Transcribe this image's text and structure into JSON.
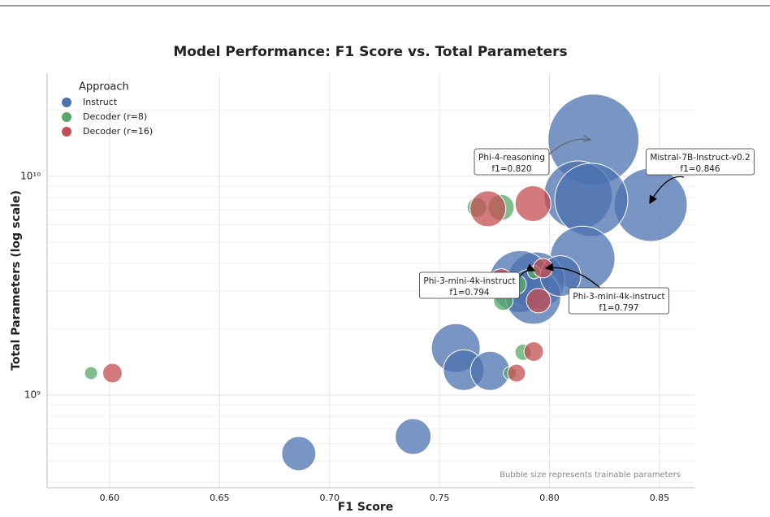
{
  "chart_data": {
    "type": "bubble",
    "title": "Model Performance: F1 Score vs. Total Parameters",
    "x_label": "F1 Score",
    "y_label": "Total Parameters (log scale)",
    "log_y": true,
    "grid": true,
    "legend_title": "Approach",
    "legend_position": "upper left",
    "note": "Bubble size represents trainable parameters",
    "xlim": [
      0.5716,
      0.8659
    ],
    "xticks": [
      {
        "value": 0.6,
        "label": "0.60"
      },
      0.65,
      {
        "value": 0.7,
        "label": "0.70"
      },
      0.75,
      {
        "value": 0.8,
        "label": "0.80"
      },
      0.85
    ],
    "ylim": [
      377000000,
      29600000000
    ],
    "yticks": [
      {
        "value": 1000000000,
        "label": "10⁹"
      },
      {
        "value": 10000000000,
        "label": "10¹⁰"
      }
    ],
    "yminorticks": [
      400000000,
      500000000,
      600000000,
      700000000,
      800000000,
      900000000,
      2000000000,
      3000000000,
      4000000000,
      5000000000,
      6000000000,
      7000000000,
      8000000000,
      9000000000,
      20000000000
    ],
    "series": [
      {
        "name": "Instruct",
        "color": "#4c72b0",
        "x": [
          0.82,
          0.846,
          0.813,
          0.819,
          0.815,
          0.794,
          0.7866,
          0.7926,
          0.805,
          0.7574,
          0.761,
          0.773,
          0.738,
          0.686
        ],
        "values": [
          14700000000,
          7400000000,
          8200000000,
          7800000000,
          4200000000,
          3340000000,
          3300000000,
          2820000000,
          3500000000,
          1640000000,
          1300000000,
          1290000000,
          646000000,
          540000000
        ],
        "sizes": [
          784,
          506,
          441,
          506,
          400,
          306,
          361,
          289,
          156,
          225,
          156,
          144,
          121,
          110
        ]
      },
      {
        "name": "Decoder (r=8)",
        "color": "#55a868",
        "x": [
          0.5916,
          0.778,
          0.767,
          0.785,
          0.779,
          0.788,
          0.782,
          0.793
        ],
        "values": [
          1260000000,
          7200000000,
          7200000000,
          3200000000,
          2700000000,
          1570000000,
          1260000000,
          3640000000
        ],
        "sizes": [
          16,
          64,
          36,
          36,
          36,
          25,
          16,
          16
        ]
      },
      {
        "name": "Decoder (r=16)",
        "color": "#c44e52",
        "x": [
          0.6013,
          0.772,
          0.7925,
          0.778,
          0.795,
          0.797,
          0.7928,
          0.785
        ],
        "values": [
          1260000000,
          7100000000,
          7500000000,
          3350000000,
          2700000000,
          3800000000,
          1580000000,
          1260000000
        ],
        "sizes": [
          36,
          121,
          121,
          49,
          56,
          36,
          36,
          30
        ]
      }
    ],
    "annotations": [
      {
        "lines": [
          "Phi-4-reasoning",
          "f1=0.820"
        ]
      },
      {
        "lines": [
          "Mistral-7B-Instruct-v0.2",
          "f1=0.846"
        ]
      },
      {
        "lines": [
          "Phi-3-mini-4k-instruct",
          "f1=0.794"
        ]
      },
      {
        "lines": [
          "Phi-3-mini-4k-instruct",
          "f1=0.797"
        ]
      }
    ]
  }
}
